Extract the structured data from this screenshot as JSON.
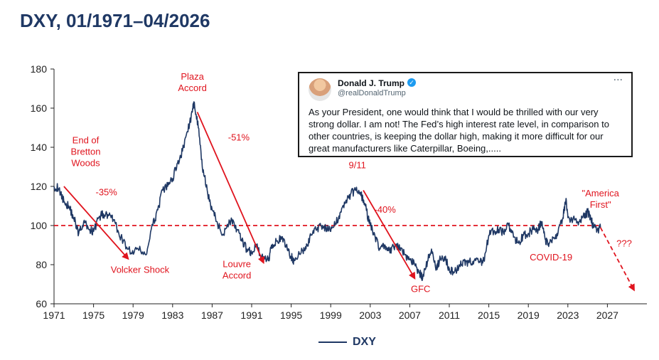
{
  "title": "DXY, 01/1971–04/2026",
  "legend": {
    "label": "DXY",
    "color": "#1f3864"
  },
  "colors": {
    "series": "#1f3864",
    "annotation": "#e0141e"
  },
  "tweet": {
    "name": "Donald J. Trump",
    "handle": "@realDonaldTrump",
    "text": "As your President, one would think that I would be thrilled with our very strong dollar. I am not! The Fed’s high interest rate level, in comparison to other countries, is keeping the dollar high, making it more difficult for our great manufacturers like Caterpillar, Boeing,.....",
    "icons": [
      "avatar",
      "verified-icon",
      "more-icon"
    ]
  },
  "chart_data": {
    "type": "line",
    "title": "DXY, 01/1971–04/2026",
    "xlabel": "",
    "ylabel": "",
    "xlim": [
      1971,
      2030
    ],
    "ylim": [
      60,
      180
    ],
    "xticks": [
      1971,
      1975,
      1979,
      1983,
      1987,
      1991,
      1995,
      1999,
      2003,
      2007,
      2011,
      2015,
      2019,
      2023,
      2027
    ],
    "yticks": [
      60,
      80,
      100,
      120,
      140,
      160,
      180
    ],
    "grid": false,
    "legend_position": "bottom-center",
    "series": [
      {
        "name": "DXY",
        "x": [
          1971.0,
          1971.5,
          1972.0,
          1972.5,
          1973.0,
          1973.5,
          1974.0,
          1974.5,
          1975.0,
          1975.5,
          1976.0,
          1976.5,
          1977.0,
          1977.5,
          1978.0,
          1978.8,
          1979.5,
          1980.3,
          1981.0,
          1981.5,
          1982.0,
          1982.5,
          1983.0,
          1983.5,
          1984.0,
          1984.5,
          1985.0,
          1985.2,
          1985.6,
          1986.0,
          1986.5,
          1987.0,
          1987.5,
          1988.0,
          1988.5,
          1989.0,
          1989.5,
          1990.0,
          1990.5,
          1991.0,
          1991.5,
          1992.0,
          1992.7,
          1993.0,
          1993.5,
          1994.0,
          1994.5,
          1995.0,
          1995.3,
          1996.0,
          1996.5,
          1997.0,
          1997.5,
          1998.0,
          1998.5,
          1999.0,
          1999.5,
          2000.0,
          2000.5,
          2001.0,
          2001.5,
          2002.0,
          2002.5,
          2003.0,
          2003.5,
          2004.0,
          2004.5,
          2005.0,
          2005.5,
          2006.0,
          2006.5,
          2007.0,
          2007.5,
          2008.0,
          2008.3,
          2008.8,
          2009.2,
          2009.7,
          2010.0,
          2010.5,
          2011.0,
          2011.5,
          2012.0,
          2012.5,
          2013.0,
          2013.5,
          2014.0,
          2014.5,
          2015.0,
          2015.5,
          2016.0,
          2016.5,
          2017.0,
          2017.5,
          2018.0,
          2018.5,
          2019.0,
          2019.5,
          2020.0,
          2020.3,
          2020.7,
          2021.0,
          2021.5,
          2022.0,
          2022.5,
          2022.8,
          2023.0,
          2023.5,
          2024.0,
          2024.5,
          2025.0,
          2025.3,
          2025.6,
          2026.0,
          2026.3
        ],
        "values": [
          120,
          119,
          112,
          110,
          104,
          96,
          102,
          98,
          97,
          104,
          106,
          105,
          103,
          97,
          92,
          86,
          88,
          85,
          100,
          108,
          118,
          120,
          124,
          132,
          138,
          148,
          158,
          163,
          150,
          130,
          118,
          108,
          102,
          95,
          100,
          103,
          98,
          92,
          88,
          86,
          90,
          84,
          82,
          90,
          92,
          93,
          90,
          84,
          82,
          86,
          88,
          95,
          98,
          100,
          99,
          97,
          101,
          107,
          112,
          116,
          118,
          117,
          110,
          100,
          94,
          88,
          90,
          86,
          90,
          88,
          85,
          83,
          80,
          76,
          73,
          82,
          88,
          78,
          82,
          84,
          78,
          76,
          80,
          82,
          81,
          82,
          81,
          82,
          95,
          97,
          98,
          96,
          100,
          94,
          91,
          95,
          96,
          98,
          98,
          102,
          93,
          91,
          94,
          96,
          104,
          113,
          104,
          103,
          102,
          104,
          107,
          104,
          99,
          98,
          99
        ]
      }
    ],
    "reference_line": {
      "y": 100,
      "style": "dashed",
      "color": "#e0141e"
    },
    "projection": {
      "x": [
        2026.3,
        2029.7
      ],
      "values": [
        99,
        67
      ],
      "label": "???"
    },
    "arrows": [
      {
        "from": [
          1972.0,
          120
        ],
        "to": [
          1978.5,
          83
        ]
      },
      {
        "from": [
          1985.5,
          158
        ],
        "to": [
          1992.2,
          81
        ]
      },
      {
        "from": [
          2002.3,
          118
        ],
        "to": [
          2007.5,
          73
        ]
      }
    ],
    "annotations": [
      {
        "lines": [
          "End of",
          "Bretton",
          "Woods"
        ],
        "x": 1974.2,
        "y": 142
      },
      {
        "lines": [
          "-35%"
        ],
        "x": 1976.3,
        "y": 115.5
      },
      {
        "lines": [
          "Volcker Shock"
        ],
        "x": 1979.7,
        "y": 75.8
      },
      {
        "lines": [
          "Plaza",
          "Accord"
        ],
        "x": 1985.0,
        "y": 174.5
      },
      {
        "lines": [
          "-51%"
        ],
        "x": 1989.7,
        "y": 143.5
      },
      {
        "lines": [
          "Louvre",
          "Accord"
        ],
        "x": 1989.5,
        "y": 78.8
      },
      {
        "lines": [
          "9/11"
        ],
        "x": 2001.7,
        "y": 129.3
      },
      {
        "lines": [
          "-40%"
        ],
        "x": 2004.5,
        "y": 106.5
      },
      {
        "lines": [
          "GFC"
        ],
        "x": 2008.1,
        "y": 66
      },
      {
        "lines": [
          "COVID-19"
        ],
        "x": 2021.3,
        "y": 82.2
      },
      {
        "lines": [
          "\"America",
          "First\""
        ],
        "x": 2026.3,
        "y": 115
      },
      {
        "lines": [
          "???"
        ],
        "x": 2028.7,
        "y": 89.2
      }
    ]
  }
}
